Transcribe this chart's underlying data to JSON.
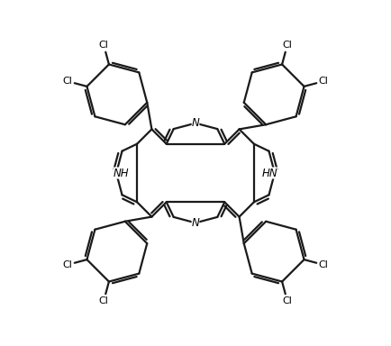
{
  "background_color": "#ffffff",
  "line_color": "#1a1a1a",
  "line_width": 1.6,
  "text_color": "#000000",
  "font_size": 8.5,
  "fig_width": 4.34,
  "fig_height": 3.84,
  "dpi": 100,
  "xlim": [
    -4.6,
    4.6
  ],
  "ylim": [
    -4.3,
    4.3
  ]
}
